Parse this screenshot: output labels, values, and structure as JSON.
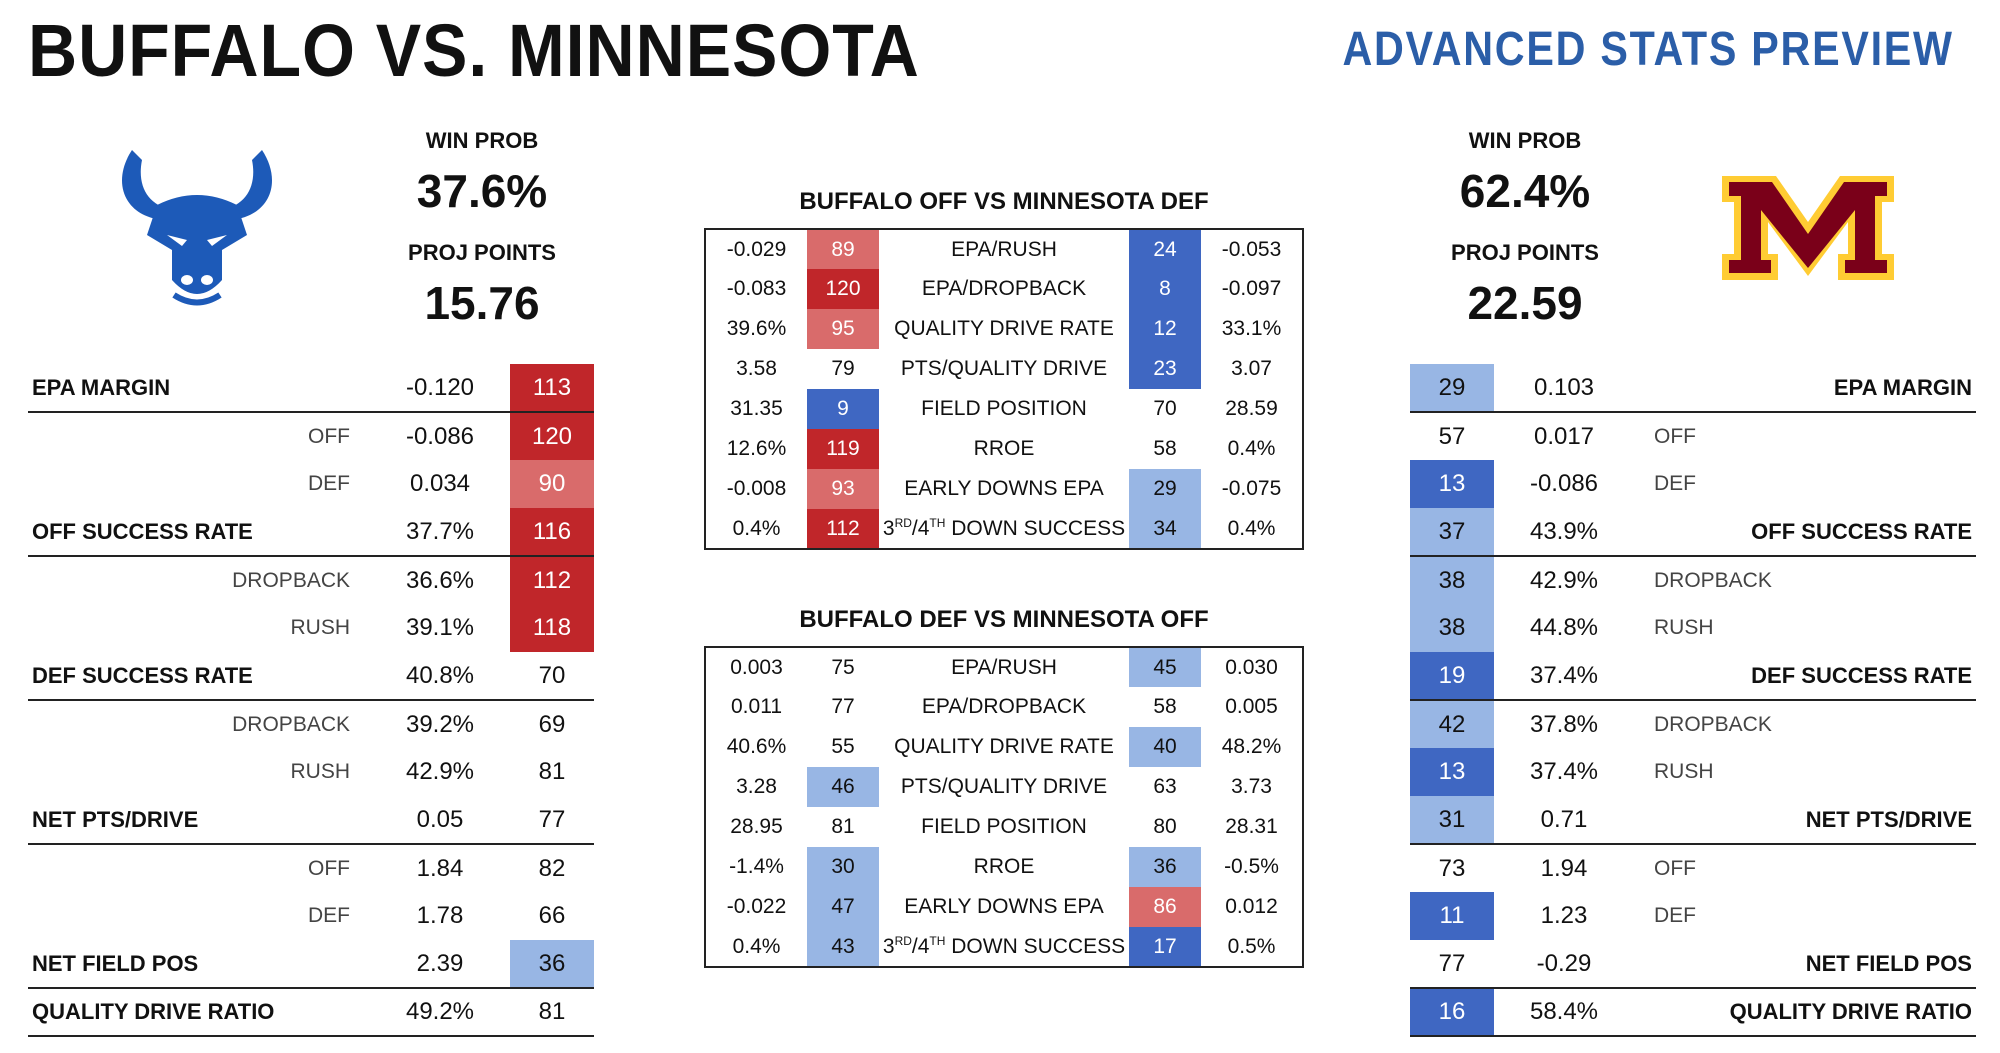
{
  "header": {
    "title": "BUFFALO VS. MINNESOTA",
    "subtitle": "ADVANCED STATS PREVIEW"
  },
  "colors": {
    "title_blue": "#2b5ea8",
    "dark_red": "#c0262a",
    "light_red": "#d96b6b",
    "dark_blue": "#3f67c2",
    "light_blue": "#98b6e4",
    "buffalo_blue": "#1d5ab8",
    "minnesota_maroon": "#7a0019",
    "minnesota_gold": "#ffcc33"
  },
  "buffalo": {
    "logo": "buffalo-bull-logo",
    "win_prob_label": "WIN PROB",
    "win_prob": "37.6%",
    "proj_points_label": "PROJ POINTS",
    "proj_points": "15.76",
    "rows": [
      {
        "label": "EPA MARGIN",
        "type": "main",
        "value": "-0.120",
        "rank": "113",
        "color": "c-red1"
      },
      {
        "label": "OFF",
        "type": "sub",
        "value": "-0.086",
        "rank": "120",
        "color": "c-red1"
      },
      {
        "label": "DEF",
        "type": "sub",
        "value": "0.034",
        "rank": "90",
        "color": "c-red2"
      },
      {
        "label": "OFF SUCCESS RATE",
        "type": "main",
        "value": "37.7%",
        "rank": "116",
        "color": "c-red1"
      },
      {
        "label": "DROPBACK",
        "type": "sub",
        "value": "36.6%",
        "rank": "112",
        "color": "c-red1"
      },
      {
        "label": "RUSH",
        "type": "sub",
        "value": "39.1%",
        "rank": "118",
        "color": "c-red1"
      },
      {
        "label": "DEF SUCCESS RATE",
        "type": "main",
        "value": "40.8%",
        "rank": "70",
        "color": ""
      },
      {
        "label": "DROPBACK",
        "type": "sub",
        "value": "39.2%",
        "rank": "69",
        "color": ""
      },
      {
        "label": "RUSH",
        "type": "sub",
        "value": "42.9%",
        "rank": "81",
        "color": ""
      },
      {
        "label": "NET PTS/DRIVE",
        "type": "main",
        "value": "0.05",
        "rank": "77",
        "color": ""
      },
      {
        "label": "OFF",
        "type": "sub",
        "value": "1.84",
        "rank": "82",
        "color": ""
      },
      {
        "label": "DEF",
        "type": "sub",
        "value": "1.78",
        "rank": "66",
        "color": ""
      },
      {
        "label": "NET FIELD POS",
        "type": "main",
        "value": "2.39",
        "rank": "36",
        "color": "c-blue2"
      },
      {
        "label": "QUALITY DRIVE RATIO",
        "type": "main",
        "value": "49.2%",
        "rank": "81",
        "color": ""
      }
    ]
  },
  "minnesota": {
    "logo": "minnesota-m-logo",
    "win_prob_label": "WIN PROB",
    "win_prob": "62.4%",
    "proj_points_label": "PROJ POINTS",
    "proj_points": "22.59",
    "rows": [
      {
        "label": "EPA MARGIN",
        "type": "main",
        "value": "0.103",
        "rank": "29",
        "color": "c-blue2"
      },
      {
        "label": "OFF",
        "type": "sub",
        "value": "0.017",
        "rank": "57",
        "color": ""
      },
      {
        "label": "DEF",
        "type": "sub",
        "value": "-0.086",
        "rank": "13",
        "color": "c-blue1"
      },
      {
        "label": "OFF SUCCESS RATE",
        "type": "main",
        "value": "43.9%",
        "rank": "37",
        "color": "c-blue2"
      },
      {
        "label": "DROPBACK",
        "type": "sub",
        "value": "42.9%",
        "rank": "38",
        "color": "c-blue2"
      },
      {
        "label": "RUSH",
        "type": "sub",
        "value": "44.8%",
        "rank": "38",
        "color": "c-blue2"
      },
      {
        "label": "DEF SUCCESS RATE",
        "type": "main",
        "value": "37.4%",
        "rank": "19",
        "color": "c-blue1"
      },
      {
        "label": "DROPBACK",
        "type": "sub",
        "value": "37.8%",
        "rank": "42",
        "color": "c-blue2"
      },
      {
        "label": "RUSH",
        "type": "sub",
        "value": "37.4%",
        "rank": "13",
        "color": "c-blue1"
      },
      {
        "label": "NET PTS/DRIVE",
        "type": "main",
        "value": "0.71",
        "rank": "31",
        "color": "c-blue2"
      },
      {
        "label": "OFF",
        "type": "sub",
        "value": "1.94",
        "rank": "73",
        "color": ""
      },
      {
        "label": "DEF",
        "type": "sub",
        "value": "1.23",
        "rank": "11",
        "color": "c-blue1"
      },
      {
        "label": "NET FIELD POS",
        "type": "main",
        "value": "-0.29",
        "rank": "77",
        "color": ""
      },
      {
        "label": "QUALITY DRIVE RATIO",
        "type": "main",
        "value": "58.4%",
        "rank": "16",
        "color": "c-blue1"
      }
    ]
  },
  "matchups": [
    {
      "title": "BUFFALO OFF VS MINNESOTA DEF",
      "rows": [
        {
          "lv": "-0.029",
          "lr": "89",
          "lc": "c-red2",
          "metric": "EPA/RUSH",
          "rr": "24",
          "rc": "c-blue1",
          "rv": "-0.053"
        },
        {
          "lv": "-0.083",
          "lr": "120",
          "lc": "c-red1",
          "metric": "EPA/DROPBACK",
          "rr": "8",
          "rc": "c-blue1",
          "rv": "-0.097"
        },
        {
          "lv": "39.6%",
          "lr": "95",
          "lc": "c-red2",
          "metric": "QUALITY DRIVE RATE",
          "rr": "12",
          "rc": "c-blue1",
          "rv": "33.1%"
        },
        {
          "lv": "3.58",
          "lr": "79",
          "lc": "",
          "metric": "PTS/QUALITY DRIVE",
          "rr": "23",
          "rc": "c-blue1",
          "rv": "3.07"
        },
        {
          "lv": "31.35",
          "lr": "9",
          "lc": "c-blue1",
          "metric": "FIELD POSITION",
          "rr": "70",
          "rc": "",
          "rv": "28.59"
        },
        {
          "lv": "12.6%",
          "lr": "119",
          "lc": "c-red1",
          "metric": "RROE",
          "rr": "58",
          "rc": "",
          "rv": "0.4%"
        },
        {
          "lv": "-0.008",
          "lr": "93",
          "lc": "c-red2",
          "metric": "EARLY DOWNS EPA",
          "rr": "29",
          "rc": "c-blue2",
          "rv": "-0.075"
        },
        {
          "lv": "0.4%",
          "lr": "112",
          "lc": "c-red1",
          "metric": "3RD/4TH DOWN SUCCESS",
          "sup": true,
          "rr": "34",
          "rc": "c-blue2",
          "rv": "0.4%"
        }
      ]
    },
    {
      "title": "BUFFALO DEF VS MINNESOTA OFF",
      "rows": [
        {
          "lv": "0.003",
          "lr": "75",
          "lc": "",
          "metric": "EPA/RUSH",
          "rr": "45",
          "rc": "c-blue2",
          "rv": "0.030"
        },
        {
          "lv": "0.011",
          "lr": "77",
          "lc": "",
          "metric": "EPA/DROPBACK",
          "rr": "58",
          "rc": "",
          "rv": "0.005"
        },
        {
          "lv": "40.6%",
          "lr": "55",
          "lc": "",
          "metric": "QUALITY DRIVE RATE",
          "rr": "40",
          "rc": "c-blue2",
          "rv": "48.2%"
        },
        {
          "lv": "3.28",
          "lr": "46",
          "lc": "c-blue2",
          "metric": "PTS/QUALITY DRIVE",
          "rr": "63",
          "rc": "",
          "rv": "3.73"
        },
        {
          "lv": "28.95",
          "lr": "81",
          "lc": "",
          "metric": "FIELD POSITION",
          "rr": "80",
          "rc": "",
          "rv": "28.31"
        },
        {
          "lv": "-1.4%",
          "lr": "30",
          "lc": "c-blue2",
          "metric": "RROE",
          "rr": "36",
          "rc": "c-blue2",
          "rv": "-0.5%"
        },
        {
          "lv": "-0.022",
          "lr": "47",
          "lc": "c-blue2",
          "metric": "EARLY DOWNS EPA",
          "rr": "86",
          "rc": "c-red2",
          "rv": "0.012"
        },
        {
          "lv": "0.4%",
          "lr": "43",
          "lc": "c-blue2",
          "metric": "3RD/4TH DOWN SUCCESS",
          "sup": true,
          "rr": "17",
          "rc": "c-blue1",
          "rv": "0.5%"
        }
      ]
    }
  ]
}
